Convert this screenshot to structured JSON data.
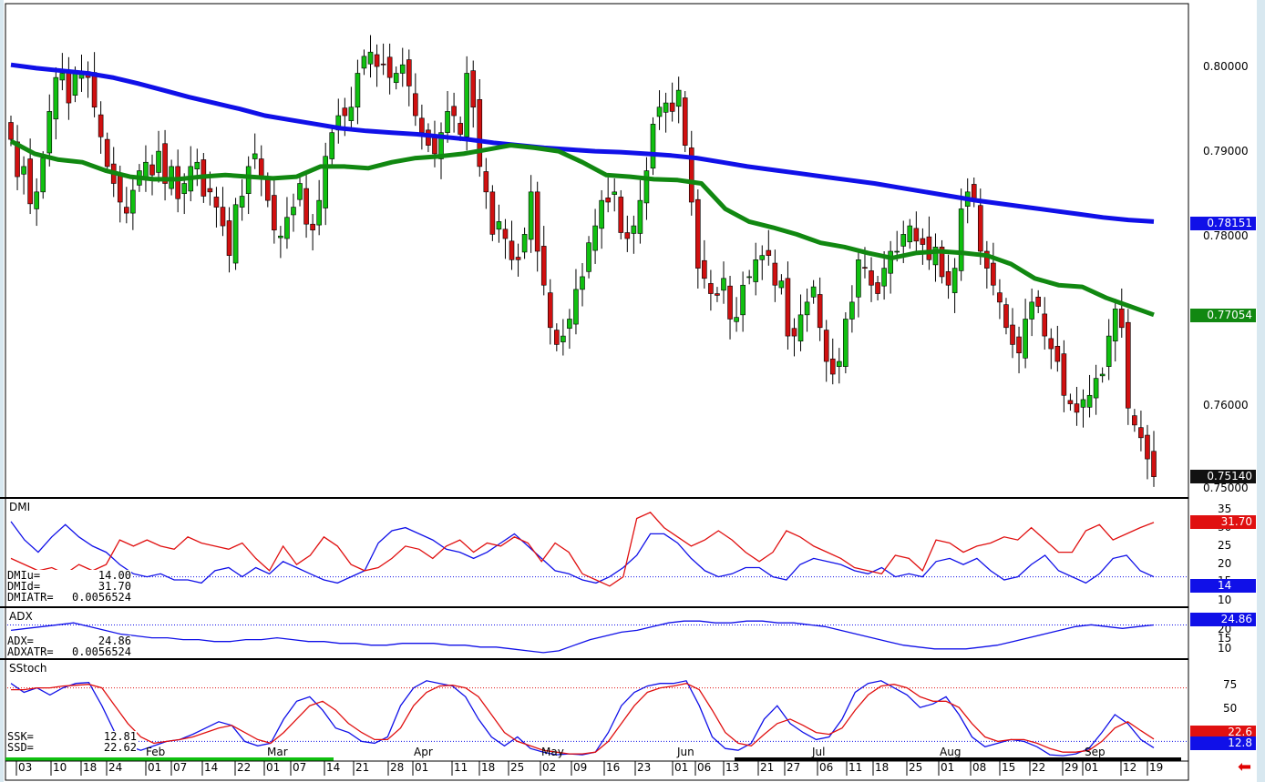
{
  "chart_data": [
    {
      "type": "candlestick",
      "panel": "price",
      "ylim": [
        0.749,
        0.807
      ],
      "y_ticks": [
        "0.80000",
        "0.79000",
        "0.78000",
        "0.76000",
        "0.75000"
      ],
      "ohlc_close": [
        0.7912,
        0.7868,
        0.788,
        0.7836,
        0.785,
        0.789,
        0.7945,
        0.7985,
        0.799,
        0.7955,
        0.799,
        0.7992,
        0.7985,
        0.795,
        0.7915,
        0.788,
        0.786,
        0.7838,
        0.7825,
        0.7852,
        0.7875,
        0.7885,
        0.787,
        0.7898,
        0.786,
        0.788,
        0.7842,
        0.786,
        0.788,
        0.7885,
        0.7845,
        0.785,
        0.7832,
        0.781,
        0.7775,
        0.7835,
        0.7845,
        0.788,
        0.7895,
        0.7865,
        0.784,
        0.7805,
        0.7798,
        0.782,
        0.7832,
        0.786,
        0.7812,
        0.7805,
        0.784,
        0.7892,
        0.792,
        0.794,
        0.794,
        0.795,
        0.799,
        0.801,
        0.8015,
        0.7998,
        0.8,
        0.7985,
        0.799,
        0.8,
        0.7975,
        0.794,
        0.792,
        0.7905,
        0.7895,
        0.792,
        0.7945,
        0.794,
        0.7918,
        0.799,
        0.795,
        0.788,
        0.785,
        0.78,
        0.7815,
        0.7795,
        0.777,
        0.777,
        0.78,
        0.785,
        0.778,
        0.774,
        0.769,
        0.767,
        0.768,
        0.77,
        0.7735,
        0.775,
        0.779,
        0.781,
        0.784,
        0.7838,
        0.785,
        0.7802,
        0.7795,
        0.781,
        0.784,
        0.7875,
        0.793,
        0.795,
        0.7955,
        0.7945,
        0.797,
        0.7905,
        0.7838,
        0.776,
        0.7748,
        0.773,
        0.7728,
        0.7748,
        0.77,
        0.7702,
        0.774,
        0.775,
        0.777,
        0.7775,
        0.7775,
        0.774,
        0.7745,
        0.768,
        0.768,
        0.7705,
        0.772,
        0.7738,
        0.769,
        0.765,
        0.7635,
        0.765,
        0.77,
        0.772,
        0.777,
        0.776,
        0.774,
        0.773,
        0.776,
        0.778,
        0.778,
        0.78,
        0.781,
        0.7792,
        0.7788,
        0.777,
        0.7785,
        0.775,
        0.774,
        0.776,
        0.783,
        0.785,
        0.784,
        0.778,
        0.776,
        0.774,
        0.772,
        0.769,
        0.767,
        0.766,
        0.77,
        0.772,
        0.7715,
        0.768,
        0.7665,
        0.765,
        0.761,
        0.76,
        0.759,
        0.7605,
        0.761,
        0.763,
        0.7635,
        0.768,
        0.7712,
        0.769,
        0.7595,
        0.7575,
        0.756,
        0.7535,
        0.7514
      ],
      "series": [
        {
          "name": "",
          "color": "#1010e8",
          "role": "long-ma",
          "values": [
            0.8,
            0.7996,
            0.7993,
            0.799,
            0.7985,
            0.7978,
            0.797,
            0.7962,
            0.7955,
            0.7948,
            0.794,
            0.7935,
            0.793,
            0.7925,
            0.7922,
            0.792,
            0.7918,
            0.7915,
            0.7912,
            0.7908,
            0.7905,
            0.7902,
            0.79,
            0.7898,
            0.7897,
            0.7895,
            0.7893,
            0.789,
            0.7885,
            0.788,
            0.7876,
            0.7872,
            0.7868,
            0.7864,
            0.786,
            0.7855,
            0.785,
            0.7845,
            0.784,
            0.7836,
            0.7832,
            0.7828,
            0.7824,
            0.782,
            0.7817,
            0.7815
          ]
        },
        {
          "name": "",
          "color": "#118811",
          "role": "short-ma",
          "values": [
            0.791,
            0.7895,
            0.7888,
            0.7885,
            0.7875,
            0.7868,
            0.7865,
            0.7865,
            0.7868,
            0.787,
            0.7868,
            0.7866,
            0.7868,
            0.788,
            0.788,
            0.7878,
            0.7885,
            0.789,
            0.7892,
            0.7895,
            0.79,
            0.7905,
            0.7902,
            0.7898,
            0.7885,
            0.787,
            0.7868,
            0.7865,
            0.7864,
            0.786,
            0.783,
            0.7815,
            0.7808,
            0.78,
            0.779,
            0.7785,
            0.7778,
            0.7772,
            0.7778,
            0.778,
            0.7778,
            0.7775,
            0.7765,
            0.7748,
            0.774,
            0.7738,
            0.7725,
            0.7715,
            0.7705
          ]
        }
      ],
      "price_tags": {
        "long_ma": "0.78151",
        "short_ma": "0.77054",
        "last": "0.75140"
      }
    },
    {
      "type": "line",
      "panel": "DMI",
      "title": "DMI",
      "ylim": [
        5,
        37
      ],
      "y_ticks": [
        "35",
        "30",
        "25",
        "20",
        "15",
        "10"
      ],
      "series": [
        {
          "name": "DMIu",
          "color": "#1010e8",
          "values": [
            32,
            26,
            22,
            27,
            31,
            27,
            24,
            22,
            18,
            15,
            14,
            15,
            13,
            13,
            12,
            16,
            17,
            14,
            17,
            15,
            19,
            17,
            15,
            13,
            12,
            14,
            16,
            25,
            29,
            30,
            28,
            26,
            23,
            22,
            20,
            22,
            25,
            28,
            24,
            20,
            16,
            15,
            13,
            12,
            14,
            17,
            21,
            28,
            28,
            25,
            20,
            16,
            14,
            15,
            17,
            17,
            14,
            13,
            18,
            20,
            19,
            18,
            16,
            15,
            17,
            14,
            15,
            14,
            19,
            20,
            18,
            20,
            16,
            13,
            14,
            18,
            21,
            16,
            14,
            12,
            15,
            20,
            21,
            16,
            14
          ]
        },
        {
          "name": "DMId",
          "color": "#e01010",
          "values": [
            20,
            18,
            16,
            17,
            15,
            18,
            16,
            18,
            26,
            24,
            26,
            24,
            23,
            27,
            25,
            24,
            23,
            25,
            20,
            16,
            24,
            18,
            21,
            27,
            24,
            18,
            16,
            17,
            20,
            24,
            23,
            20,
            24,
            26,
            22,
            25,
            24,
            27,
            25,
            19,
            25,
            22,
            15,
            13,
            11,
            14,
            33,
            35,
            30,
            27,
            24,
            26,
            29,
            26,
            22,
            19,
            22,
            29,
            27,
            24,
            22,
            20,
            17,
            16,
            15,
            21,
            20,
            16,
            26,
            25,
            22,
            24,
            25,
            27,
            26,
            30,
            26,
            22,
            22,
            29,
            31,
            26,
            28,
            30,
            31.7
          ]
        }
      ],
      "readout": {
        "dmiu_label": "DMIu=",
        "dmiu_value": "14.00",
        "dmid_label": "DMId=",
        "dmid_value": "31.70",
        "atr_label": "DMIATR=",
        "atr_value": "0.0056524"
      },
      "tags": {
        "red": "31.70",
        "blue": "14"
      }
    },
    {
      "type": "line",
      "panel": "ADX",
      "title": "ADX",
      "ylim": [
        8,
        31
      ],
      "y_ticks": [
        "25",
        "20",
        "15",
        "10"
      ],
      "series": [
        {
          "name": "ADX",
          "color": "#1010e8",
          "values": [
            22,
            23,
            24,
            25,
            26,
            24,
            22,
            20,
            19,
            18,
            18,
            17,
            17,
            16,
            16,
            17,
            17,
            18,
            17,
            16,
            16,
            15,
            15,
            14,
            14,
            15,
            15,
            15,
            14,
            14,
            13,
            13,
            12,
            11,
            10,
            11,
            14,
            17,
            19,
            21,
            22,
            24,
            26,
            27,
            27,
            26,
            26,
            27,
            27,
            26,
            26,
            25,
            24,
            22,
            20,
            18,
            16,
            14,
            13,
            12,
            12,
            12,
            13,
            14,
            16,
            18,
            20,
            22,
            24,
            25,
            24,
            23,
            24,
            24.86
          ]
        }
      ],
      "readout": {
        "adx_label": "ADX=",
        "adx_value": "24.86",
        "atr_label": "ADXATR=",
        "atr_value": "0.0056524"
      },
      "tags": {
        "blue": "24.86"
      }
    },
    {
      "type": "line",
      "panel": "SStoch",
      "title": "SStoch",
      "ylim": [
        0,
        100
      ],
      "y_ticks": [
        "75",
        "50"
      ],
      "series": [
        {
          "name": "SSK",
          "color": "#1010e8",
          "values": [
            85,
            75,
            80,
            72,
            80,
            85,
            86,
            60,
            30,
            15,
            10,
            15,
            20,
            22,
            28,
            35,
            42,
            38,
            20,
            15,
            18,
            45,
            65,
            70,
            55,
            35,
            30,
            20,
            18,
            25,
            60,
            80,
            88,
            85,
            82,
            70,
            45,
            25,
            15,
            25,
            12,
            8,
            5,
            6,
            5,
            8,
            30,
            60,
            75,
            82,
            85,
            85,
            88,
            60,
            25,
            12,
            10,
            18,
            45,
            60,
            40,
            30,
            22,
            25,
            45,
            75,
            85,
            88,
            80,
            72,
            58,
            62,
            70,
            50,
            25,
            14,
            18,
            22,
            20,
            14,
            5,
            4,
            6,
            12,
            30,
            50,
            40,
            22,
            12.81
          ]
        },
        {
          "name": "SSD",
          "color": "#e01010",
          "values": [
            78,
            78,
            80,
            80,
            82,
            83,
            84,
            80,
            60,
            40,
            25,
            18,
            20,
            22,
            25,
            30,
            35,
            38,
            30,
            22,
            18,
            30,
            45,
            60,
            65,
            55,
            40,
            30,
            22,
            22,
            35,
            60,
            75,
            82,
            83,
            80,
            70,
            50,
            30,
            20,
            15,
            10,
            8,
            6,
            6,
            8,
            20,
            40,
            60,
            75,
            80,
            82,
            85,
            78,
            55,
            30,
            18,
            15,
            28,
            40,
            45,
            38,
            30,
            28,
            35,
            55,
            72,
            82,
            84,
            80,
            70,
            65,
            65,
            58,
            40,
            25,
            20,
            22,
            22,
            18,
            12,
            8,
            8,
            10,
            20,
            35,
            42,
            32,
            22.62
          ]
        }
      ],
      "readout": {
        "ssk_label": "SSK=",
        "ssk_value": "12.81",
        "ssd_label": "SSD=",
        "ssd_value": "22.62"
      },
      "tags": {
        "red": "22.6",
        "blue": "12.8"
      }
    }
  ],
  "x_axis": {
    "days": [
      "03",
      "10",
      "18",
      "24",
      "01",
      "07",
      "14",
      "22",
      "01",
      "07",
      "14",
      "21",
      "28",
      "01",
      "11",
      "18",
      "25",
      "02",
      "09",
      "16",
      "23",
      "01",
      "06",
      "13",
      "21",
      "27",
      "06",
      "11",
      "18",
      "25",
      "01",
      "08",
      "15",
      "22",
      "29",
      "01",
      "12",
      "19"
    ],
    "months": [
      "Feb",
      "Mar",
      "Apr",
      "May",
      "Jun",
      "Jul",
      "Aug",
      "Sep"
    ]
  },
  "colors": {
    "up": "#10c010",
    "down": "#d01010",
    "blue_ma": "#1010e8",
    "green_ma": "#118811"
  }
}
